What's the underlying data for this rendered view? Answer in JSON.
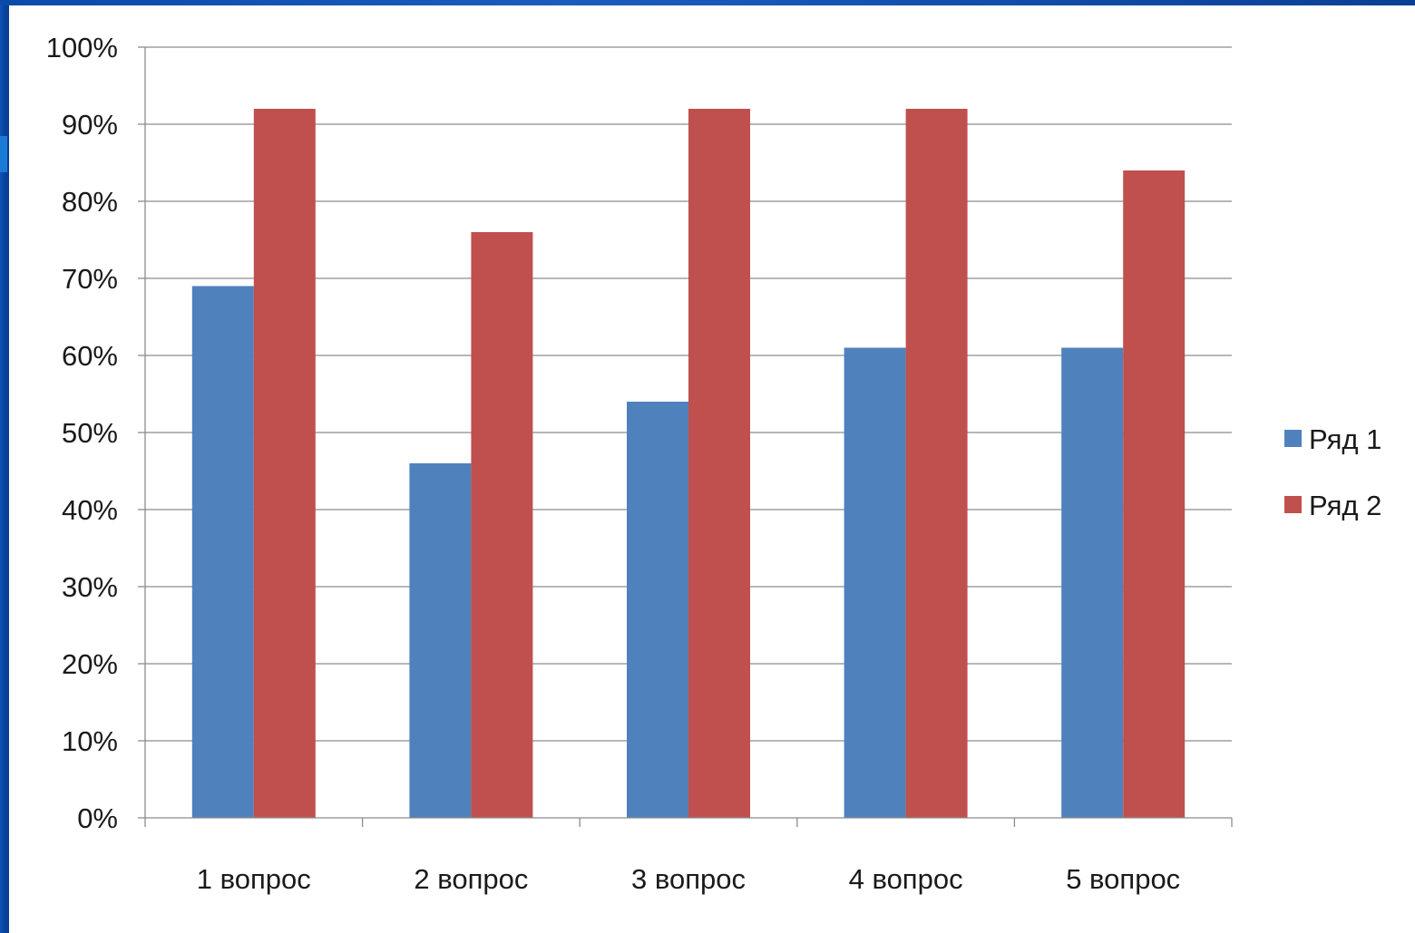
{
  "chart_data": {
    "type": "bar",
    "categories": [
      "1 вопрос",
      "2 вопрос",
      "3 вопрос",
      "4 вопрос",
      "5 вопрос"
    ],
    "series": [
      {
        "name": "Ряд 1",
        "values": [
          69,
          46,
          54,
          61,
          61
        ],
        "color": "#4f81bd"
      },
      {
        "name": "Ряд 2",
        "values": [
          92,
          76,
          92,
          92,
          84
        ],
        "color": "#c0504d"
      }
    ],
    "ylim": [
      0,
      100
    ],
    "yticks": [
      "0%",
      "10%",
      "20%",
      "30%",
      "40%",
      "50%",
      "60%",
      "70%",
      "80%",
      "90%",
      "100%"
    ],
    "grid": true,
    "legend_position": "right"
  }
}
